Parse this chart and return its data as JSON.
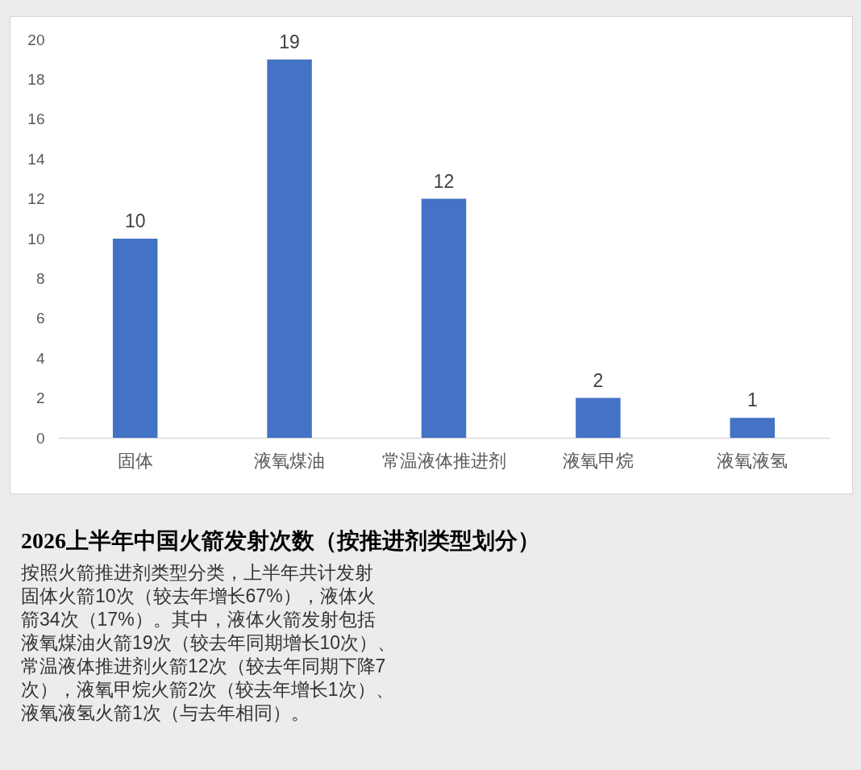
{
  "chart_data": {
    "type": "bar",
    "title": "2026上半年中国火箭发射次数（按推进剂类型划分）",
    "subtitle": "按照火箭推进剂类型分类，上半年共计发射固体火箭10次（较去年增长67%），液体火箭34次（17%）。其中，液体火箭发射包括液氧煤油火箭19次（较去年同期增长10次）、常温液体推进剂火箭12次（较去年同期下降7次），液氧甲烷火箭2次（较去年增长1次）、液氧液氢火箭1次（与去年相同）。",
    "categories": [
      "固体",
      "液氧煤油",
      "常温液体推进剂",
      "液氧甲烷",
      "液氧液氢"
    ],
    "values": [
      10,
      19,
      12,
      2,
      1
    ],
    "color": "#4472c4",
    "ylim": [
      0,
      20
    ],
    "yticks": [
      0,
      2,
      4,
      6,
      8,
      10,
      12,
      14,
      16,
      18,
      20
    ],
    "data_labels": true
  }
}
